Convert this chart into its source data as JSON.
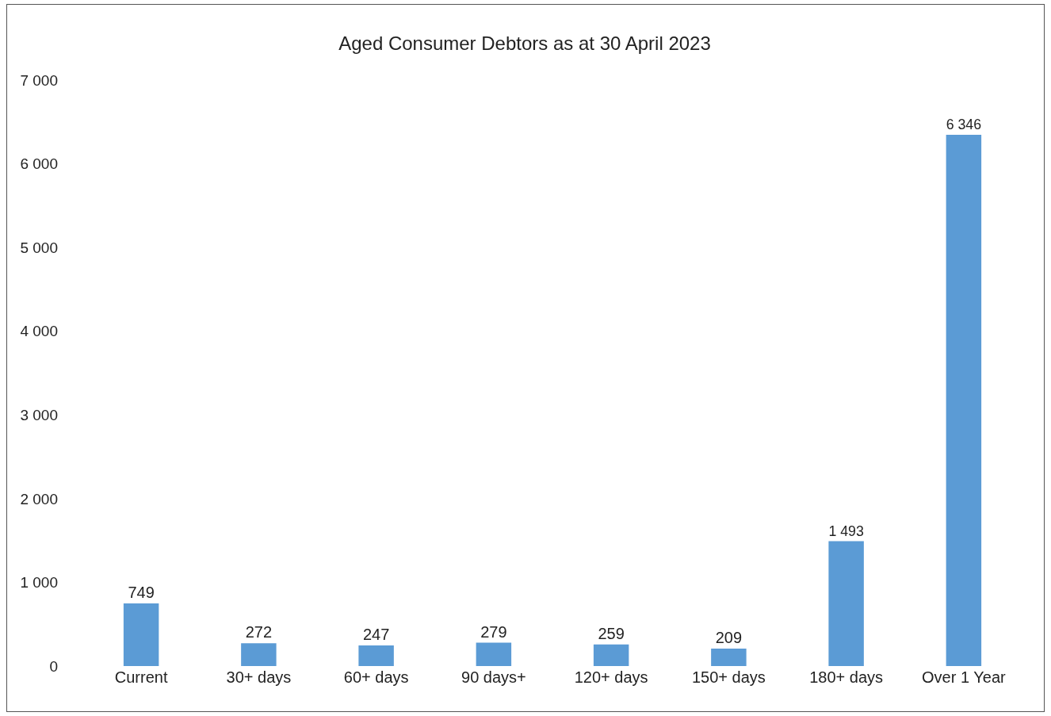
{
  "chart_data": {
    "type": "bar",
    "title": "Aged Consumer Debtors as at 30 April 2023",
    "categories": [
      "Current",
      "30+ days",
      "60+ days",
      "90 days+",
      "120+ days",
      "150+ days",
      "180+ days",
      "Over 1 Year"
    ],
    "values": [
      749,
      272,
      247,
      279,
      259,
      209,
      1493,
      6346
    ],
    "value_labels": [
      "749",
      "272",
      "247",
      "279",
      "259",
      "209",
      "1 493",
      "6 346"
    ],
    "color": "#5b9bd5",
    "ylim": [
      0,
      7000
    ],
    "yticks": [
      {
        "value": 0,
        "label": "0"
      },
      {
        "value": 1000,
        "label": "1 000"
      },
      {
        "value": 2000,
        "label": "2 000"
      },
      {
        "value": 3000,
        "label": "3 000"
      },
      {
        "value": 4000,
        "label": "4 000"
      },
      {
        "value": 5000,
        "label": "5 000"
      },
      {
        "value": 6000,
        "label": "6 000"
      },
      {
        "value": 7000,
        "label": "7 000"
      }
    ],
    "grid": false,
    "legend": false
  }
}
